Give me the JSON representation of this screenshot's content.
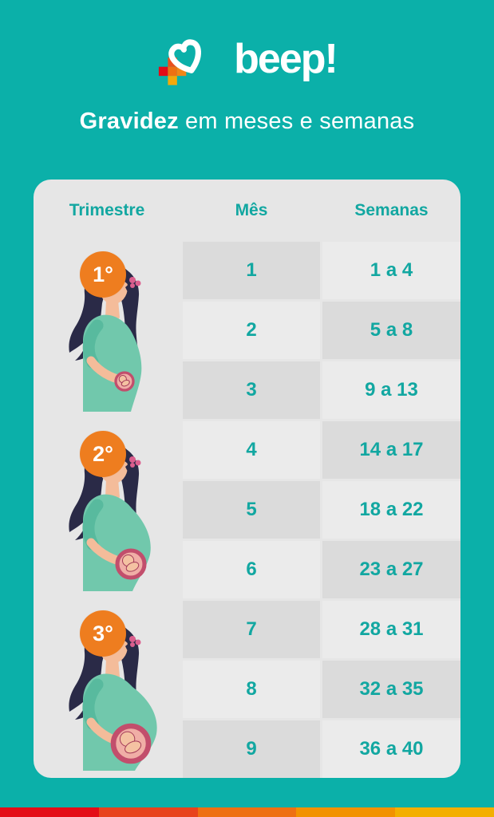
{
  "page": {
    "background": "#0BB0A9"
  },
  "logo": {
    "wordmark": "beep!"
  },
  "title": {
    "bold": "Gravidez",
    "rest": "em meses e semanas"
  },
  "table": {
    "headers": [
      "Trimestre",
      "Mês",
      "Semanas"
    ],
    "trimesters": [
      {
        "badge": "1°",
        "months": [
          {
            "month": "1",
            "weeks": "1 a 4"
          },
          {
            "month": "2",
            "weeks": "5 a 8"
          },
          {
            "month": "3",
            "weeks": "9 a 13"
          }
        ]
      },
      {
        "badge": "2°",
        "months": [
          {
            "month": "4",
            "weeks": "14 a 17"
          },
          {
            "month": "5",
            "weeks": "18 a 22"
          },
          {
            "month": "6",
            "weeks": "23 a 27"
          }
        ]
      },
      {
        "badge": "3°",
        "months": [
          {
            "month": "7",
            "weeks": "28 a 31"
          },
          {
            "month": "8",
            "weeks": "32 a 35"
          },
          {
            "month": "9",
            "weeks": "36 a 40"
          }
        ]
      }
    ]
  },
  "chart_data": {
    "type": "table",
    "title": "Gravidez em meses e semanas",
    "columns": [
      "Trimestre",
      "Mês",
      "Semanas"
    ],
    "rows": [
      [
        "1°",
        "1",
        "1 a 4"
      ],
      [
        "1°",
        "2",
        "5 a 8"
      ],
      [
        "1°",
        "3",
        "9 a 13"
      ],
      [
        "2°",
        "4",
        "14 a 17"
      ],
      [
        "2°",
        "5",
        "18 a 22"
      ],
      [
        "2°",
        "6",
        "23 a 27"
      ],
      [
        "3°",
        "7",
        "28 a 31"
      ],
      [
        "3°",
        "8",
        "32 a 35"
      ],
      [
        "3°",
        "9",
        "36 a 40"
      ]
    ]
  },
  "icons": {
    "logo_mark": "heart-plus-icon",
    "illustration": "pregnant-woman-illustration"
  },
  "colors": {
    "background_teal": "#0BB0A9",
    "text_teal": "#12A7A1",
    "card_gray": "#E6E6E6",
    "cell_dark_gray": "#DBDBDB",
    "cell_light_gray": "#EBEBEB",
    "badge_orange": "#EE7D1F",
    "title_white": "#FFFFFF"
  },
  "footer": {
    "stripe_colors": [
      "#E40D17",
      "#E8431C",
      "#EE7012",
      "#F29200",
      "#F3AF00"
    ]
  }
}
